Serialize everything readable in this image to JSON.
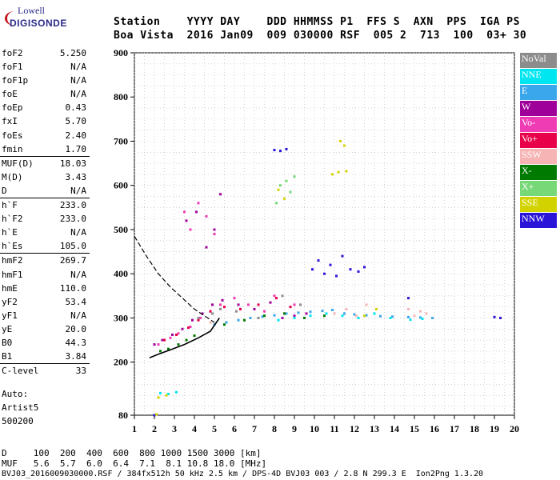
{
  "logo": {
    "line1": "Lowell",
    "line2": "DIGISONDE"
  },
  "header": {
    "line1": "Station    YYYY DAY    DDD HHMMSS P1  FFS S  AXN  PPS  IGA PS",
    "line2": "Boa Vista  2016 Jan09  009 030000 RSF  005 2  713  100  03+ 30"
  },
  "params": [
    {
      "name": "foF2",
      "value": "5.250",
      "sep": false
    },
    {
      "name": "foF1",
      "value": "N/A",
      "sep": false
    },
    {
      "name": "foF1p",
      "value": "N/A",
      "sep": false
    },
    {
      "name": "foE",
      "value": "N/A",
      "sep": false
    },
    {
      "name": "foEp",
      "value": "0.43",
      "sep": false
    },
    {
      "name": "fxI",
      "value": "5.70",
      "sep": false
    },
    {
      "name": "foEs",
      "value": "2.40",
      "sep": false
    },
    {
      "name": "fmin",
      "value": "1.70",
      "sep": false
    },
    {
      "name": "MUF(D)",
      "value": "18.03",
      "sep": true
    },
    {
      "name": "M(D)",
      "value": "3.43",
      "sep": false
    },
    {
      "name": "D",
      "value": "N/A",
      "sep": false
    },
    {
      "name": "h`F",
      "value": "233.0",
      "sep": true
    },
    {
      "name": "h`F2",
      "value": "233.0",
      "sep": false
    },
    {
      "name": "h`E",
      "value": "N/A",
      "sep": false
    },
    {
      "name": "h`Es",
      "value": "105.0",
      "sep": false
    },
    {
      "name": "hmF2",
      "value": "269.7",
      "sep": true
    },
    {
      "name": "hmF1",
      "value": "N/A",
      "sep": false
    },
    {
      "name": "hmE",
      "value": "110.0",
      "sep": false
    },
    {
      "name": "yF2",
      "value": "53.4",
      "sep": false
    },
    {
      "name": "yF1",
      "value": "N/A",
      "sep": false
    },
    {
      "name": "yE",
      "value": "20.0",
      "sep": false
    },
    {
      "name": "B0",
      "value": "44.3",
      "sep": false
    },
    {
      "name": "B1",
      "value": "3.84",
      "sep": false
    },
    {
      "name": "C-level",
      "value": "33",
      "sep": true
    }
  ],
  "auto": {
    "line1": "Auto:",
    "line2": "Artist5",
    "line3": "500200"
  },
  "legend": [
    {
      "label": "NoVal",
      "color": "#8c8c8c"
    },
    {
      "label": "NNE",
      "color": "#00e6f0"
    },
    {
      "label": "E",
      "color": "#3aa6ec"
    },
    {
      "label": "W",
      "color": "#a0009a"
    },
    {
      "label": "Vo-",
      "color": "#f03cb4"
    },
    {
      "label": "Vo+",
      "color": "#e8004a"
    },
    {
      "label": "SSW",
      "color": "#f6b4b4"
    },
    {
      "label": "X-",
      "color": "#007a00"
    },
    {
      "label": "X+",
      "color": "#76d876"
    },
    {
      "label": "SSE",
      "color": "#d2d200"
    },
    {
      "label": "NNW",
      "color": "#2a14d8"
    }
  ],
  "bottom": {
    "line1": "D     100  200  400  600  800 1000 1500 3000 [km]",
    "line2": "MUF   5.6  5.7  6.0  6.4  7.1  8.1 10.8 18.0 [MHz]",
    "line3": "BVJ03_2016009030000.RSF / 384fx512h 50 kHz 2.5 km / DPS-4D BVJ03 003 / 2.8 N 299.3 E  Ion2Png 1.3.20"
  },
  "chart_data": {
    "type": "scatter",
    "title": "",
    "xlabel": "",
    "ylabel": "",
    "xlim": [
      1,
      20
    ],
    "ylim": [
      80,
      900
    ],
    "xticks": [
      1,
      2,
      3,
      4,
      5,
      6,
      7,
      8,
      9,
      10,
      11,
      12,
      13,
      14,
      15,
      16,
      17,
      18,
      19,
      20
    ],
    "yticks": [
      80,
      200,
      300,
      400,
      500,
      600,
      700,
      800,
      900
    ],
    "grid": true,
    "series": [
      {
        "name": "Vo-",
        "color": "#f03cb4",
        "x": [
          2.2,
          2.8,
          3.2,
          3.8,
          4.3,
          4.8,
          5.3,
          6.0,
          6.7,
          7.5,
          8.0,
          8.5,
          9.0,
          3.5,
          3.8,
          4.2,
          4.6,
          5.0
        ],
        "y": [
          240,
          255,
          265,
          280,
          300,
          315,
          330,
          345,
          330,
          315,
          350,
          310,
          330,
          540,
          500,
          560,
          530,
          490
        ]
      },
      {
        "name": "W",
        "color": "#a0009a",
        "x": [
          2.0,
          2.4,
          2.9,
          3.4,
          3.9,
          4.4,
          4.9,
          5.4,
          6.2,
          7.0,
          7.8,
          8.4,
          9.0,
          9.6,
          3.6,
          4.1,
          4.6,
          5.0,
          5.3
        ],
        "y": [
          240,
          250,
          262,
          275,
          295,
          310,
          330,
          340,
          330,
          320,
          335,
          300,
          305,
          310,
          520,
          540,
          460,
          500,
          580
        ]
      },
      {
        "name": "Vo+",
        "color": "#e8004a",
        "x": [
          2.5,
          3.1,
          3.7,
          4.2,
          4.8,
          5.5,
          6.3,
          7.2,
          8.1,
          8.8
        ],
        "y": [
          250,
          262,
          278,
          295,
          315,
          325,
          320,
          330,
          345,
          325
        ]
      },
      {
        "name": "E",
        "color": "#3aa6ec",
        "x": [
          5.0,
          5.6,
          6.2,
          6.8,
          7.4,
          8.0,
          8.6,
          9.2,
          9.8,
          10.4,
          10.9,
          11.5,
          12.0,
          12.6,
          13.3,
          13.9,
          14.7,
          15.3,
          15.9
        ],
        "y": [
          285,
          290,
          295,
          300,
          303,
          306,
          310,
          312,
          314,
          316,
          318,
          310,
          308,
          306,
          304,
          303,
          302,
          301,
          300
        ]
      },
      {
        "name": "NNE",
        "color": "#00e6f0",
        "x": [
          8.2,
          9.0,
          9.8,
          10.6,
          11.4,
          12.2,
          13.0,
          13.8,
          14.8,
          15.4,
          2.3,
          2.7,
          3.1
        ],
        "y": [
          295,
          300,
          305,
          310,
          305,
          300,
          310,
          300,
          296,
          298,
          130,
          128,
          132
        ]
      },
      {
        "name": "NNW",
        "color": "#2a14d8",
        "x": [
          9.9,
          10.2,
          10.5,
          10.8,
          11.1,
          11.4,
          11.8,
          12.2,
          12.5,
          14.7,
          19.0,
          19.3,
          2.0,
          8.0,
          8.3,
          8.6
        ],
        "y": [
          410,
          430,
          400,
          420,
          395,
          440,
          410,
          405,
          415,
          345,
          302,
          300,
          80,
          680,
          678,
          682
        ]
      },
      {
        "name": "SSW",
        "color": "#f6b4b4",
        "x": [
          14.7,
          15.0,
          15.3,
          15.6,
          11.0,
          11.6,
          12.1,
          12.6,
          4.8
        ],
        "y": [
          320,
          305,
          315,
          310,
          310,
          320,
          305,
          330,
          290
        ]
      },
      {
        "name": "SSE",
        "color": "#d2d200",
        "x": [
          2.2,
          2.6,
          10.9,
          11.2,
          11.6,
          11.3,
          11.5,
          8.2,
          8.5,
          12.5,
          13.1,
          2.1
        ],
        "y": [
          120,
          125,
          625,
          630,
          632,
          700,
          690,
          590,
          570,
          305,
          320,
          82
        ]
      },
      {
        "name": "X-",
        "color": "#007a00",
        "x": [
          2.3,
          2.7,
          3.2,
          3.6,
          4.0,
          5.5,
          6.5,
          7.5,
          8.5,
          9.5,
          10.5
        ],
        "y": [
          225,
          230,
          240,
          250,
          260,
          285,
          295,
          305,
          310,
          300,
          305
        ]
      },
      {
        "name": "X+",
        "color": "#76d876",
        "x": [
          8.1,
          8.3,
          8.6,
          9.0,
          8.8
        ],
        "y": [
          560,
          600,
          610,
          620,
          585
        ]
      },
      {
        "name": "NoVal",
        "color": "#8c8c8c",
        "x": [
          4.2,
          4.9,
          5.3,
          6.1,
          7.2,
          8.4,
          9.3
        ],
        "y": [
          300,
          310,
          320,
          315,
          300,
          350,
          330
        ]
      }
    ],
    "profile_curve": {
      "x": [
        1.75,
        2.2,
        2.8,
        3.5,
        4.2,
        4.8,
        5.25
      ],
      "y": [
        210,
        218,
        228,
        240,
        255,
        270,
        300
      ]
    },
    "trace_curve": {
      "x": [
        1.0,
        1.6,
        2.2,
        2.8,
        3.4,
        4.0,
        4.5,
        5.0
      ],
      "y": [
        485,
        440,
        400,
        370,
        345,
        320,
        305,
        290
      ]
    }
  }
}
